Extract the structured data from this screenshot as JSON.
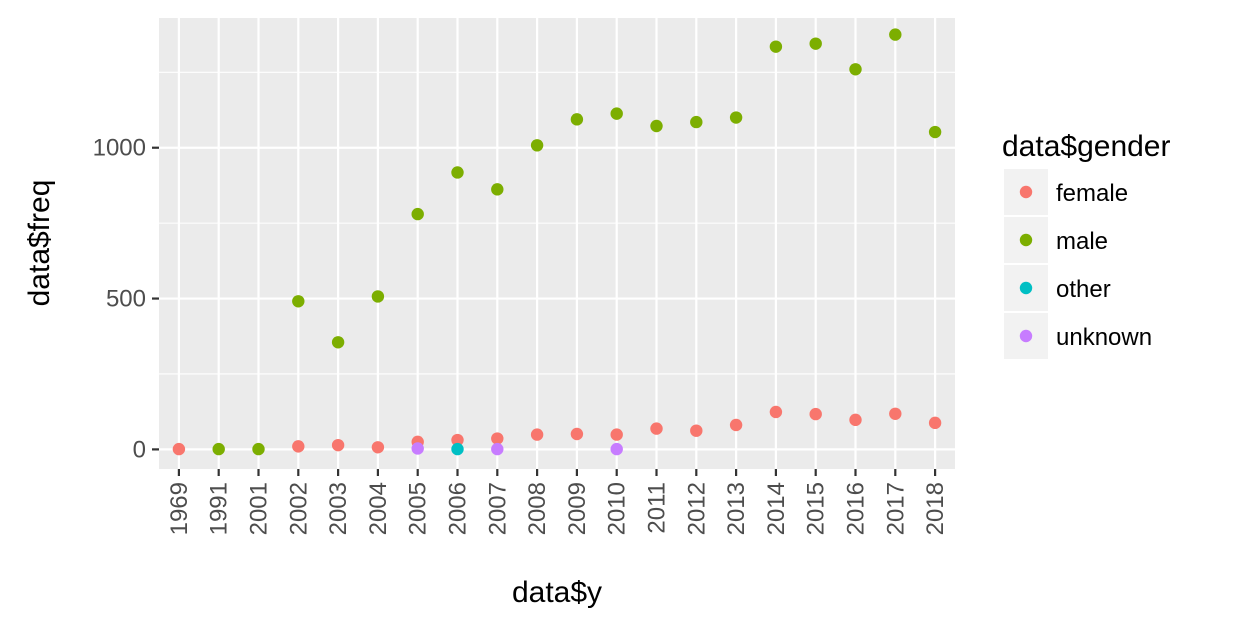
{
  "chart_data": {
    "type": "scatter",
    "xlabel": "data$y",
    "ylabel": "data$freq",
    "categories": [
      "1969",
      "1991",
      "2001",
      "2002",
      "2003",
      "2004",
      "2005",
      "2006",
      "2007",
      "2008",
      "2009",
      "2010",
      "2011",
      "2012",
      "2013",
      "2014",
      "2015",
      "2016",
      "2017",
      "2018"
    ],
    "yticks": [
      0,
      500,
      1000
    ],
    "ylim": [
      -65,
      1430
    ],
    "grid": true,
    "legend": {
      "title": "data$gender",
      "position": "right"
    },
    "series": [
      {
        "name": "female",
        "color": "#F8766D",
        "points": [
          [
            "1969",
            1
          ],
          [
            "2002",
            10
          ],
          [
            "2003",
            14
          ],
          [
            "2004",
            7
          ],
          [
            "2005",
            25
          ],
          [
            "2006",
            31
          ],
          [
            "2007",
            36
          ],
          [
            "2008",
            49
          ],
          [
            "2009",
            51
          ],
          [
            "2010",
            49
          ],
          [
            "2011",
            69
          ],
          [
            "2012",
            62
          ],
          [
            "2013",
            81
          ],
          [
            "2014",
            124
          ],
          [
            "2015",
            117
          ],
          [
            "2016",
            98
          ],
          [
            "2017",
            118
          ],
          [
            "2018",
            88
          ]
        ]
      },
      {
        "name": "male",
        "color": "#7CAE00",
        "points": [
          [
            "1991",
            1
          ],
          [
            "2001",
            1
          ],
          [
            "2002",
            491
          ],
          [
            "2003",
            355
          ],
          [
            "2004",
            507
          ],
          [
            "2005",
            780
          ],
          [
            "2006",
            918
          ],
          [
            "2007",
            862
          ],
          [
            "2008",
            1008
          ],
          [
            "2009",
            1094
          ],
          [
            "2010",
            1113
          ],
          [
            "2011",
            1072
          ],
          [
            "2012",
            1085
          ],
          [
            "2013",
            1100
          ],
          [
            "2014",
            1335
          ],
          [
            "2015",
            1345
          ],
          [
            "2016",
            1260
          ],
          [
            "2017",
            1375
          ],
          [
            "2018",
            1052
          ]
        ]
      },
      {
        "name": "other",
        "color": "#00BFC4",
        "points": [
          [
            "2006",
            1
          ]
        ]
      },
      {
        "name": "unknown",
        "color": "#C77CFF",
        "points": [
          [
            "2005",
            3
          ],
          [
            "2007",
            1
          ],
          [
            "2010",
            1
          ]
        ]
      }
    ]
  }
}
